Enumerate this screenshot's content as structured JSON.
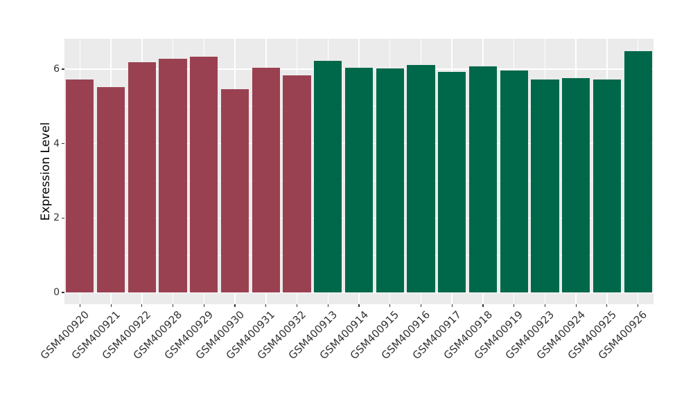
{
  "figure": {
    "background": "#FFFFFF",
    "title": ""
  },
  "chart_data": {
    "type": "bar",
    "title": "",
    "xlabel": "",
    "ylabel": "Expression Level",
    "yticks": [
      0,
      2,
      4,
      6
    ],
    "minor_gridlines": [
      1,
      3,
      5
    ],
    "ylim": [
      -0.32,
      6.8
    ],
    "grid": true,
    "legend": "none",
    "panel_background": "#EBEBEB",
    "gridline_color": "#FFFFFF",
    "axis_text_color": "#333333",
    "group_colors": {
      "group1": "#9A4151",
      "group2": "#00684A"
    },
    "categories": [
      "GSM400920",
      "GSM400921",
      "GSM400922",
      "GSM400928",
      "GSM400929",
      "GSM400930",
      "GSM400931",
      "GSM400932",
      "GSM400913",
      "GSM400914",
      "GSM400915",
      "GSM400916",
      "GSM400917",
      "GSM400918",
      "GSM400919",
      "GSM400923",
      "GSM400924",
      "GSM400925",
      "GSM400926"
    ],
    "bars": [
      {
        "label": "GSM400920",
        "value": 5.73,
        "group": "group1",
        "color": "#9A4151"
      },
      {
        "label": "GSM400921",
        "value": 5.52,
        "group": "group1",
        "color": "#9A4151"
      },
      {
        "label": "GSM400922",
        "value": 6.19,
        "group": "group1",
        "color": "#9A4151"
      },
      {
        "label": "GSM400928",
        "value": 6.28,
        "group": "group1",
        "color": "#9A4151"
      },
      {
        "label": "GSM400929",
        "value": 6.33,
        "group": "group1",
        "color": "#9A4151"
      },
      {
        "label": "GSM400930",
        "value": 5.47,
        "group": "group1",
        "color": "#9A4151"
      },
      {
        "label": "GSM400931",
        "value": 6.03,
        "group": "group1",
        "color": "#9A4151"
      },
      {
        "label": "GSM400932",
        "value": 5.84,
        "group": "group1",
        "color": "#9A4151"
      },
      {
        "label": "GSM400913",
        "value": 6.23,
        "group": "group2",
        "color": "#00684A"
      },
      {
        "label": "GSM400914",
        "value": 6.04,
        "group": "group2",
        "color": "#00684A"
      },
      {
        "label": "GSM400915",
        "value": 6.01,
        "group": "group2",
        "color": "#00684A"
      },
      {
        "label": "GSM400916",
        "value": 6.11,
        "group": "group2",
        "color": "#00684A"
      },
      {
        "label": "GSM400917",
        "value": 5.92,
        "group": "group2",
        "color": "#00684A"
      },
      {
        "label": "GSM400918",
        "value": 6.07,
        "group": "group2",
        "color": "#00684A"
      },
      {
        "label": "GSM400919",
        "value": 5.96,
        "group": "group2",
        "color": "#00684A"
      },
      {
        "label": "GSM400923",
        "value": 5.73,
        "group": "group2",
        "color": "#00684A"
      },
      {
        "label": "GSM400924",
        "value": 5.75,
        "group": "group2",
        "color": "#00684A"
      },
      {
        "label": "GSM400925",
        "value": 5.72,
        "group": "group2",
        "color": "#00684A"
      },
      {
        "label": "GSM400926",
        "value": 6.49,
        "group": "group2",
        "color": "#00684A"
      }
    ]
  }
}
